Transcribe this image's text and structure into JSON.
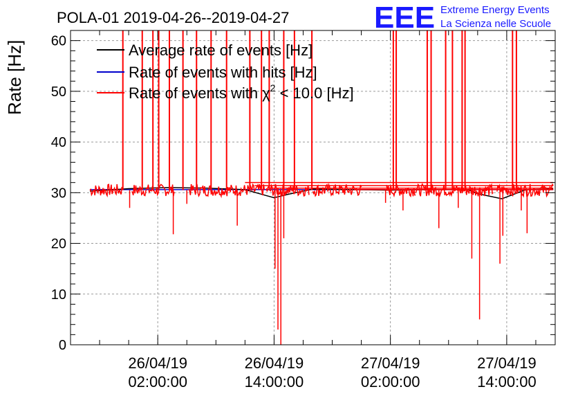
{
  "logo": {
    "text": "EEE",
    "line1": "Extreme Energy Events",
    "line2": "La Scienza nelle Scuole"
  },
  "chart_data": {
    "type": "line",
    "title": "POLA-01 2019-04-26--2019-04-27",
    "xlabel": "",
    "ylabel": "Rate [Hz]",
    "ylim": [
      0,
      62
    ],
    "yticks": [
      0,
      10,
      20,
      30,
      40,
      50,
      60
    ],
    "xlim_hours": [
      -7,
      43
    ],
    "xticks": [
      {
        "hour": 2,
        "date": "26/04/19",
        "time": "02:00:00"
      },
      {
        "hour": 14,
        "date": "26/04/19",
        "time": "14:00:00"
      },
      {
        "hour": 26,
        "date": "27/04/19",
        "time": "02:00:00"
      },
      {
        "hour": 38,
        "date": "27/04/19",
        "time": "14:00:00"
      }
    ],
    "grid": true,
    "legend_position": "top-left",
    "series": [
      {
        "name": "Average rate of events [Hz]",
        "color": "#000000",
        "x": [
          -5.0,
          -1.0,
          3.0,
          7.0,
          11.0,
          14.0,
          15.5,
          18.0,
          22.0,
          26.0,
          30.0,
          34.0,
          35.0,
          37.5,
          40.0,
          42.8
        ],
        "y": [
          30.3,
          30.8,
          31.0,
          30.9,
          30.6,
          29.0,
          29.7,
          30.7,
          30.6,
          30.5,
          30.6,
          30.6,
          29.8,
          28.8,
          30.6,
          30.7
        ]
      },
      {
        "name": "Rate of events with hits [Hz]",
        "color": "#0000cc",
        "x": [
          -5.0,
          42.8
        ],
        "y": [
          30.6,
          30.6
        ]
      },
      {
        "name": "Rate of events with χ² < 10.0 [Hz]",
        "legend_main": "Rate of events with",
        "legend_chi": "χ",
        "legend_sup": "2",
        "legend_tail": " < 10.0 [Hz]",
        "color": "#ff0000",
        "segments_x": [
          [
            -5.0,
            -1.7
          ],
          [
            -0.7,
            3.7
          ],
          [
            5.2,
            13.0
          ],
          [
            13.2,
            17.6
          ],
          [
            18.0,
            23.0
          ],
          [
            25.6,
            28.6
          ],
          [
            28.6,
            36.6
          ],
          [
            37.0,
            42.8
          ]
        ],
        "baseline": 30.5,
        "spikes_up_x": [
          -1.6,
          0.4,
          1.5,
          2.1,
          3.2,
          4.6,
          6.0,
          7.5,
          9.1,
          11.5,
          12.7,
          13.5,
          15.0,
          16.1,
          17.9,
          26.3,
          26.6,
          29.8,
          30.2,
          31.7,
          32.4,
          33.4,
          33.7,
          38.6,
          39.0
        ],
        "dips": [
          {
            "x": -0.9,
            "y": 27.0
          },
          {
            "x": 3.6,
            "y": 21.8
          },
          {
            "x": 5.0,
            "y": 27.8
          },
          {
            "x": 10.2,
            "y": 23.5
          },
          {
            "x": 14.1,
            "y": 15.0
          },
          {
            "x": 14.4,
            "y": 3.0
          },
          {
            "x": 14.7,
            "y": 0.0
          },
          {
            "x": 15.0,
            "y": 21.0
          },
          {
            "x": 25.5,
            "y": 28.0
          },
          {
            "x": 27.3,
            "y": 26.5
          },
          {
            "x": 31.0,
            "y": 23.0
          },
          {
            "x": 33.0,
            "y": 27.0
          },
          {
            "x": 34.4,
            "y": 17.0
          },
          {
            "x": 35.2,
            "y": 5.0
          },
          {
            "x": 37.3,
            "y": 16.0
          },
          {
            "x": 37.6,
            "y": 21.5
          },
          {
            "x": 39.5,
            "y": 26.5
          },
          {
            "x": 40.1,
            "y": 22.0
          }
        ],
        "steps": [
          {
            "x0": 11.0,
            "x1": 42.8,
            "y": 32.0
          },
          {
            "x0": 12.0,
            "x1": 42.8,
            "y": 31.4
          },
          {
            "x0": 13.5,
            "x1": 42.8,
            "y": 30.9
          },
          {
            "x0": 22.5,
            "x1": 42.8,
            "y": 30.6
          }
        ]
      }
    ]
  }
}
